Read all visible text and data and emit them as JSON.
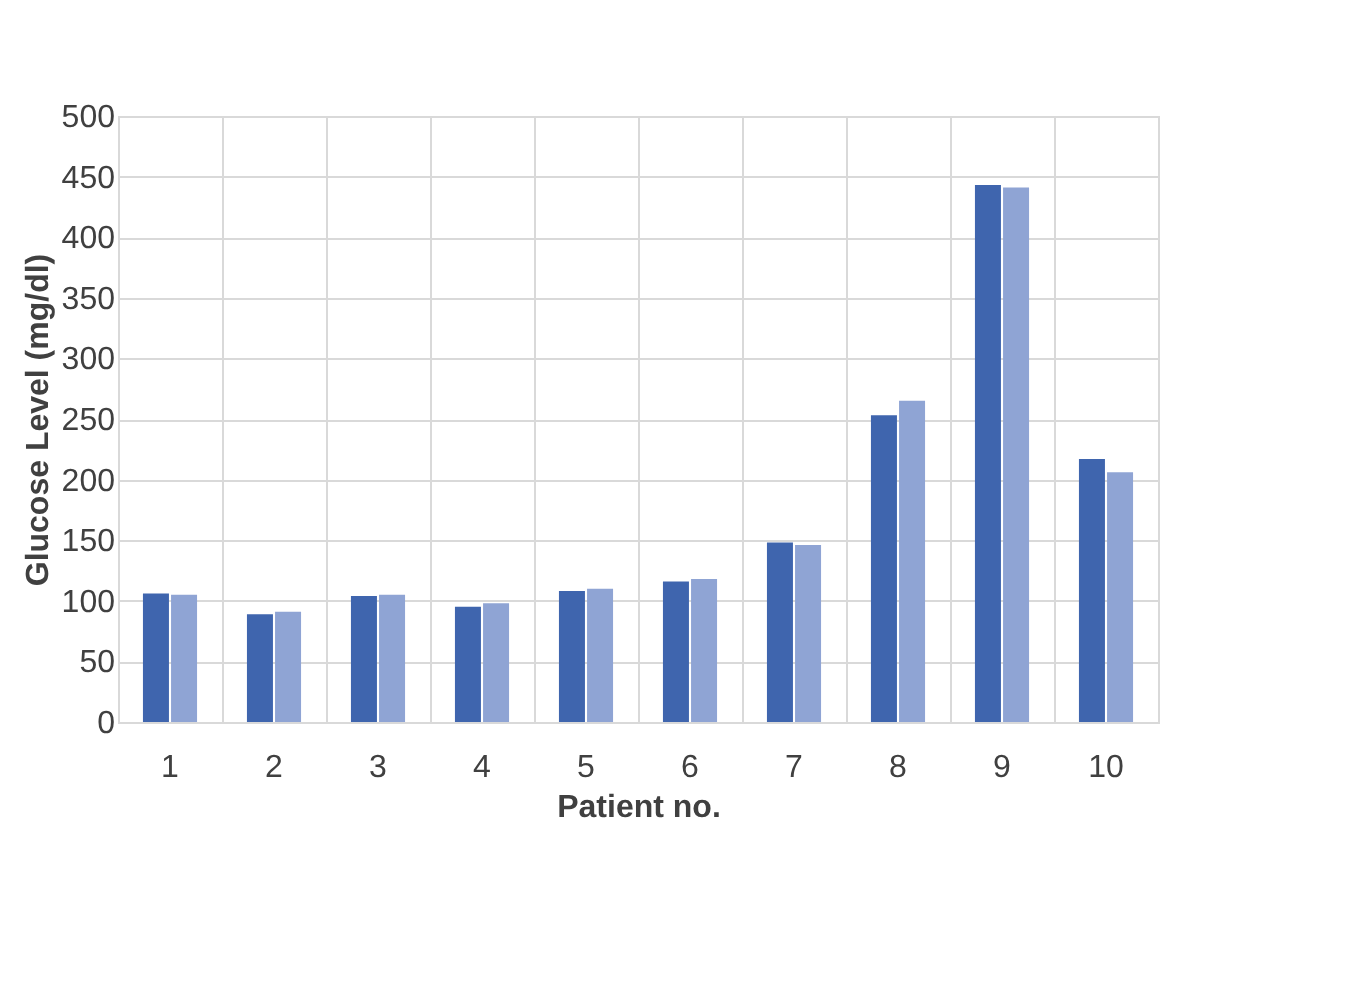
{
  "chart_data": {
    "type": "bar",
    "xlabel": "Patient no.",
    "ylabel": "Glucose Level (mg/dl)",
    "categories": [
      "1",
      "2",
      "3",
      "4",
      "5",
      "6",
      "7",
      "8",
      "9",
      "10"
    ],
    "series": [
      {
        "color": "#3f65ae",
        "values": [
          106,
          89,
          104,
          95,
          108,
          116,
          148,
          253,
          443,
          217
        ]
      },
      {
        "color": "#8fa4d4",
        "values": [
          105,
          91,
          105,
          98,
          110,
          118,
          146,
          265,
          441,
          206
        ]
      }
    ],
    "ylim": [
      0,
      500
    ],
    "yticks": [
      0,
      50,
      100,
      150,
      200,
      250,
      300,
      350,
      400,
      450,
      500
    ],
    "grid": true
  }
}
